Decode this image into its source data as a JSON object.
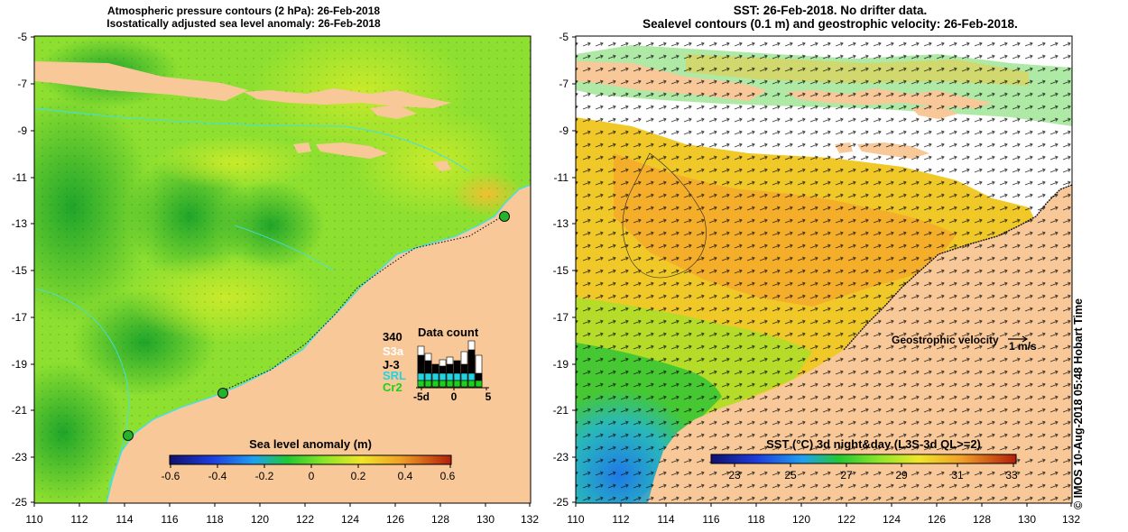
{
  "left_panel": {
    "title_line1": "Atmospheric pressure contours (2 hPa): 26-Feb-2018",
    "title_line2": "Isostatically adjusted sea level anomaly: 26-Feb-2018",
    "colorbar": {
      "label": "Sea level anomaly (m)",
      "ticks": [
        "-0.6",
        "-0.4",
        "-0.2",
        "0",
        "0.2",
        "0.4",
        "0.6"
      ]
    },
    "data_count": {
      "title": "Data count",
      "max_label": "340",
      "satellites": [
        {
          "name": "S3a",
          "color": "#ffffff"
        },
        {
          "name": "J-3",
          "color": "#000000"
        },
        {
          "name": "SRL",
          "color": "#22d3e0"
        },
        {
          "name": "Cr2",
          "color": "#19d219"
        }
      ],
      "axis_ticks": [
        "-5d",
        "0",
        "5"
      ]
    }
  },
  "right_panel": {
    "title_line1": "SST: 26-Feb-2018. No drifter data.",
    "title_line2": "Sealevel contours (0.1 m) and geostrophic velocity: 26-Feb-2018.",
    "velocity_label": "Geostrophic velocity",
    "velocity_scale": "1 m/s",
    "colorbar": {
      "label": "SST (°C) 3d night&day (L3S-3d QL>=2)",
      "ticks": [
        "23",
        "25",
        "27",
        "29",
        "31",
        "33"
      ]
    }
  },
  "axes": {
    "lat_ticks": [
      "-5",
      "-7",
      "-9",
      "-11",
      "-13",
      "-15",
      "-17",
      "-19",
      "-21",
      "-23",
      "-25"
    ],
    "lon_ticks": [
      "110",
      "112",
      "114",
      "116",
      "118",
      "120",
      "122",
      "124",
      "126",
      "128",
      "130",
      "132"
    ]
  },
  "stamp": "© IMOS 10-Aug-2018 05:48 Hobart Time",
  "colors": {
    "land": "#f9c899",
    "ocean_green": "#5ad22a",
    "anomaly_yellow_green": "#a8e432",
    "anomaly_dark_green": "#23b42a",
    "sst_orange": "#f5b42a",
    "sst_yellow": "#e6dc28",
    "coastline_cyan": "#3ee0f0"
  }
}
